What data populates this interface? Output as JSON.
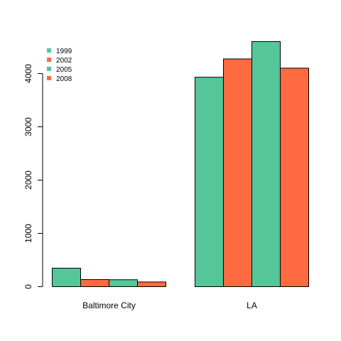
{
  "chart_data": {
    "type": "bar",
    "categories": [
      "Baltimore City",
      "LA"
    ],
    "series": [
      {
        "name": "1999",
        "color": "#55c69a",
        "values": [
          347,
          3931
        ]
      },
      {
        "name": "2002",
        "color": "#ff6a40",
        "values": [
          134,
          4274
        ]
      },
      {
        "name": "2005",
        "color": "#55c69a",
        "values": [
          130,
          4601
        ]
      },
      {
        "name": "2008",
        "color": "#ff6a40",
        "values": [
          88,
          4101
        ]
      }
    ],
    "yticks": [
      0,
      1000,
      2000,
      3000,
      4000
    ],
    "ylim": [
      0,
      4700
    ],
    "legend_position": "top-left",
    "grid": false
  }
}
